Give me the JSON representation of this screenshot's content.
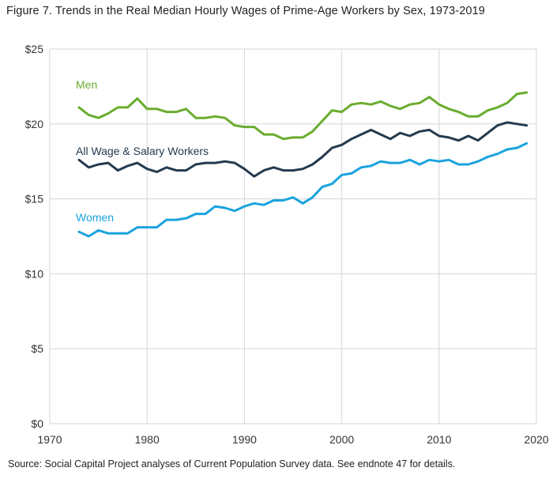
{
  "title": "Figure 7. Trends in the Real Median Hourly Wages of Prime-Age Workers by Sex, 1973-2019",
  "source": "Source: Social Capital Project analyses of Current Population Survey data. See endnote 47 for details.",
  "colors": {
    "men": "#6aac2e",
    "all": "#243a4e",
    "women": "#1aa3df",
    "grid": "#d6d6d6"
  },
  "chart_data": {
    "type": "line",
    "title": "Figure 7. Trends in the Real Median Hourly Wages of Prime-Age Workers by Sex, 1973-2019",
    "xlabel": "",
    "ylabel": "",
    "xlim": [
      1970,
      2020
    ],
    "ylim": [
      0,
      25
    ],
    "x_ticks": [
      1970,
      1980,
      1990,
      2000,
      2010,
      2020
    ],
    "y_ticks": [
      0,
      5,
      10,
      15,
      20,
      25
    ],
    "y_tick_labels": [
      "$0",
      "$5",
      "$10",
      "$15",
      "$20",
      "$25"
    ],
    "grid": true,
    "x": [
      1973,
      1974,
      1975,
      1976,
      1977,
      1978,
      1979,
      1980,
      1981,
      1982,
      1983,
      1984,
      1985,
      1986,
      1987,
      1988,
      1989,
      1990,
      1991,
      1992,
      1993,
      1994,
      1995,
      1996,
      1997,
      1998,
      1999,
      2000,
      2001,
      2002,
      2003,
      2004,
      2005,
      2006,
      2007,
      2008,
      2009,
      2010,
      2011,
      2012,
      2013,
      2014,
      2015,
      2016,
      2017,
      2018,
      2019
    ],
    "series": [
      {
        "name": "Men",
        "key": "men",
        "values": [
          21.1,
          20.6,
          20.4,
          20.7,
          21.1,
          21.1,
          21.7,
          21.0,
          21.0,
          20.8,
          20.8,
          21.0,
          20.4,
          20.4,
          20.5,
          20.4,
          19.9,
          19.8,
          19.8,
          19.3,
          19.3,
          19.0,
          19.1,
          19.1,
          19.5,
          20.2,
          20.9,
          20.8,
          21.3,
          21.4,
          21.3,
          21.5,
          21.2,
          21.0,
          21.3,
          21.4,
          21.8,
          21.3,
          21.0,
          20.8,
          20.5,
          20.5,
          20.9,
          21.1,
          21.4,
          22.0,
          22.1
        ]
      },
      {
        "name": "All Wage & Salary Workers",
        "key": "all",
        "values": [
          17.6,
          17.1,
          17.3,
          17.4,
          16.9,
          17.2,
          17.4,
          17.0,
          16.8,
          17.1,
          16.9,
          16.9,
          17.3,
          17.4,
          17.4,
          17.5,
          17.4,
          17.0,
          16.5,
          16.9,
          17.1,
          16.9,
          16.9,
          17.0,
          17.3,
          17.8,
          18.4,
          18.6,
          19.0,
          19.3,
          19.6,
          19.3,
          19.0,
          19.4,
          19.2,
          19.5,
          19.6,
          19.2,
          19.1,
          18.9,
          19.2,
          18.9,
          19.4,
          19.9,
          20.1,
          20.0,
          19.9
        ]
      },
      {
        "name": "Women",
        "key": "women",
        "values": [
          12.8,
          12.5,
          12.9,
          12.7,
          12.7,
          12.7,
          13.1,
          13.1,
          13.1,
          13.6,
          13.6,
          13.7,
          14.0,
          14.0,
          14.5,
          14.4,
          14.2,
          14.5,
          14.7,
          14.6,
          14.9,
          14.9,
          15.1,
          14.7,
          15.1,
          15.8,
          16.0,
          16.6,
          16.7,
          17.1,
          17.2,
          17.5,
          17.4,
          17.4,
          17.6,
          17.3,
          17.6,
          17.5,
          17.6,
          17.3,
          17.3,
          17.5,
          17.8,
          18.0,
          18.3,
          18.4,
          18.7
        ]
      }
    ],
    "annotations": [
      {
        "text": "Men",
        "series": "men"
      },
      {
        "text": "All Wage & Salary Workers",
        "series": "all"
      },
      {
        "text": "Women",
        "series": "women"
      }
    ]
  }
}
